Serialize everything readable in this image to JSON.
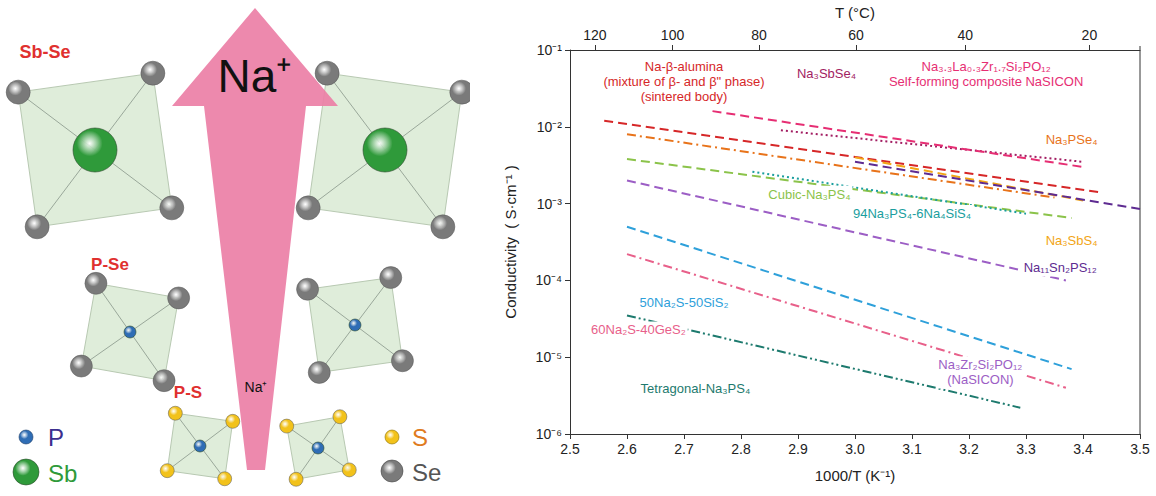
{
  "diagram": {
    "unit_labels": {
      "sb_se": "Sb-Se",
      "p_se": "P-Se",
      "p_s": "P-S"
    },
    "arrow_label": "Na⁺",
    "arrow_small_label": "Na⁺",
    "legend": [
      {
        "label": "P",
        "color": "#2f6db5"
      },
      {
        "label": "Sb",
        "color": "#2f9a3a"
      },
      {
        "label": "S",
        "color": "#f2c21b"
      },
      {
        "label": "Se",
        "color": "#7a7a7a"
      }
    ]
  },
  "chart_data": {
    "type": "line",
    "x_label": "1000/T (K⁻¹)",
    "x2_label": "T (°C)",
    "y_label": "Conductivity  ( S·cm⁻¹ )",
    "log": "y",
    "grid": false,
    "legend": "none",
    "xlim": [
      2.5,
      3.5
    ],
    "xticks": [
      2.5,
      2.6,
      2.7,
      2.8,
      2.9,
      {
        "value": 3,
        "label": "3.0"
      },
      3.1,
      3.2,
      3.3,
      3.4,
      3.5
    ],
    "x2lim": [
      2.5,
      3.5
    ],
    "x2ticks": [
      {
        "value": 2.5436,
        "label": "120"
      },
      {
        "value": 2.6799,
        "label": "100"
      },
      {
        "value": 2.8317,
        "label": "80"
      },
      {
        "value": 3.0017,
        "label": "60"
      },
      {
        "value": 3.1934,
        "label": "40"
      },
      {
        "value": 3.4112,
        "label": "20"
      }
    ],
    "ylim": [
      1e-06,
      0.1
    ],
    "yticks": [
      {
        "value": 1e-06,
        "label": "10⁻⁶"
      },
      {
        "value": 1e-05,
        "label": "10⁻⁵"
      },
      {
        "value": 0.0001,
        "label": "10⁻⁴"
      },
      {
        "value": 0.001,
        "label": "10⁻³"
      },
      {
        "value": 0.01,
        "label": "10⁻²"
      },
      {
        "value": 0.1,
        "label": "10⁻¹"
      }
    ],
    "series": [
      {
        "name": "Na-β-alumina\n(mixture of β- and β\" phase)\n(sintered body)",
        "color": "#d62728",
        "line_style": "dashed",
        "x": [
          2.56,
          3.43
        ],
        "values": [
          0.012,
          0.0014
        ]
      },
      {
        "name": "Na₃SbSe₄",
        "color": "#a21d62",
        "line_style": "dotted",
        "x": [
          2.87,
          3.4
        ],
        "values": [
          0.009,
          0.0035
        ]
      },
      {
        "name": "Na₃.₃La₀.₃Zr₁.₇Si₂PO₁₂\nSelf-forming composite NaSICON",
        "color": "#e62e73",
        "line_style": "dashed",
        "x": [
          2.75,
          3.4
        ],
        "values": [
          0.016,
          0.003
        ]
      },
      {
        "name": "Na₃PSe₄",
        "color": "#e8731a",
        "line_style": "dashdot",
        "x": [
          2.6,
          3.35
        ],
        "values": [
          0.008,
          0.0012
        ]
      },
      {
        "name": "Na₃SbS₄",
        "color": "#f2a516",
        "line_style": "dashed",
        "x": [
          3.0,
          3.4
        ],
        "values": [
          0.004,
          0.0011
        ]
      },
      {
        "name": "Cubic-Na₃PS₄",
        "color": "#8bc34a",
        "line_style": "dashed",
        "x": [
          2.6,
          3.38
        ],
        "values": [
          0.0038,
          0.00065
        ]
      },
      {
        "name": "94Na₃PS₄-6Na₄SiS₄",
        "color": "#1a9e9e",
        "line_style": "dotted",
        "x": [
          2.82,
          3.3
        ],
        "values": [
          0.0026,
          0.00074
        ]
      },
      {
        "name": "Na₁₁Sn₂PS₁₂",
        "color": "#5e2b91",
        "line_style": "dashed",
        "x": [
          3.0,
          3.5
        ],
        "values": [
          0.0035,
          0.00085
        ]
      },
      {
        "name": "Na₃Zr₂Si₂PO₁₂\n(NaSICON)",
        "color": "#9c5ec5",
        "line_style": "dashed",
        "x": [
          2.6,
          3.37
        ],
        "values": [
          0.002,
          0.0001
        ]
      },
      {
        "name": "50Na₂S-50SiS₂",
        "color": "#2ea0da",
        "line_style": "dashed",
        "x": [
          2.6,
          3.38
        ],
        "values": [
          0.0005,
          7e-06
        ]
      },
      {
        "name": "60Na₂S-40GeS₂",
        "color": "#e8608a",
        "line_style": "dashdot",
        "x": [
          2.6,
          3.37
        ],
        "values": [
          0.00022,
          4e-06
        ]
      },
      {
        "name": "Tetragonal-Na₃PS₄",
        "color": "#1d7a6e",
        "line_style": "dashdotdot",
        "x": [
          2.6,
          3.29
        ],
        "values": [
          3.5e-05,
          2.2e-06
        ]
      }
    ]
  }
}
